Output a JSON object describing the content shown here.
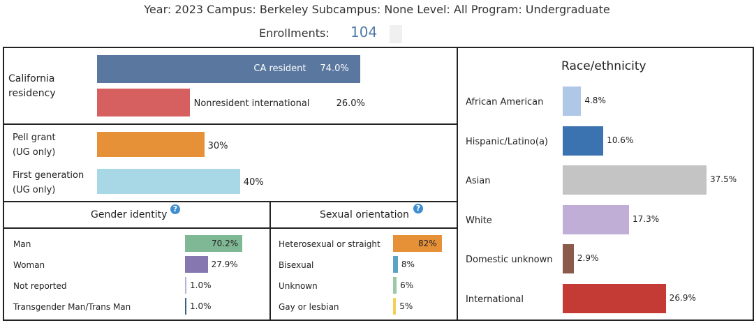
{
  "header": {
    "filters": "Year: 2023  Campus: Berkeley  Subcampus: None  Level: All  Program: Undergraduate",
    "enrollments_label": "Enrollments:",
    "enrollments_value": "104"
  },
  "chart_data": [
    {
      "type": "bar",
      "title": "California residency",
      "categories": [
        "CA resident",
        "Nonresident international"
      ],
      "values": [
        74.0,
        26.0
      ],
      "value_labels": [
        "74.0%",
        "26.0%"
      ],
      "colors": [
        "#59779f",
        "#d65f5f"
      ]
    },
    {
      "type": "bar",
      "categories": [
        "Pell grant (UG only)",
        "First generation (UG only)"
      ],
      "values": [
        30,
        40
      ],
      "value_labels": [
        "30%",
        "40%"
      ],
      "colors": [
        "#e69138",
        "#a8d8e6"
      ]
    },
    {
      "type": "bar",
      "title": "Gender identity",
      "categories": [
        "Man",
        "Woman",
        "Not reported",
        "Transgender Man/Trans Man"
      ],
      "values": [
        70.2,
        27.9,
        1.0,
        1.0
      ],
      "value_labels": [
        "70.2%",
        "27.9%",
        "1.0%",
        "1.0%"
      ],
      "colors": [
        "#7fb894",
        "#8677b0",
        "#b8b0d6",
        "#3b5f85"
      ]
    },
    {
      "type": "bar",
      "title": "Sexual orientation",
      "categories": [
        "Heterosexual or straight",
        "Bisexual",
        "Unknown",
        "Gay or lesbian"
      ],
      "values": [
        82,
        8,
        6,
        5
      ],
      "value_labels": [
        "82%",
        "8%",
        "6%",
        "5%"
      ],
      "colors": [
        "#e69138",
        "#5ba3c5",
        "#9cc7a8",
        "#f2d15a"
      ]
    },
    {
      "type": "bar",
      "title": "Race/ethnicity",
      "categories": [
        "African American",
        "Hispanic/Latino(a)",
        "Asian",
        "White",
        "Domestic unknown",
        "International"
      ],
      "values": [
        4.8,
        10.6,
        37.5,
        17.3,
        2.9,
        26.9
      ],
      "value_labels": [
        "4.8%",
        "10.6%",
        "37.5%",
        "17.3%",
        "2.9%",
        "26.9%"
      ],
      "colors": [
        "#b0c8e8",
        "#3b73b0",
        "#c4c4c4",
        "#c0aed6",
        "#8b5a4a",
        "#c43a35"
      ]
    }
  ],
  "labels": {
    "residency_title": "California residency",
    "pell_title": "Pell grant (UG only)",
    "firstgen_title": "First generation (UG only)",
    "help_glyph": "?"
  }
}
